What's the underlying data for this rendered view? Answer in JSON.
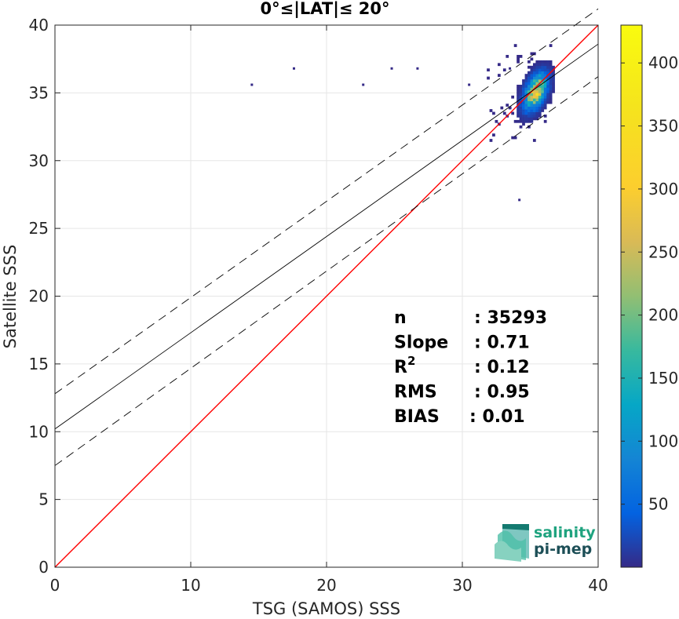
{
  "chart_data": {
    "type": "heatmap",
    "title": "0°≤|LAT|≤ 20°",
    "xlabel": "TSG (SAMOS) SSS",
    "ylabel": "Satellite SSS",
    "xlim": [
      0,
      40
    ],
    "ylim": [
      0,
      40
    ],
    "xticks": [
      0,
      10,
      20,
      30,
      40
    ],
    "yticks": [
      0,
      5,
      10,
      15,
      20,
      25,
      30,
      35,
      40
    ],
    "grid": true,
    "colorbar": {
      "min": 0,
      "max": 430,
      "ticks": [
        50,
        100,
        150,
        200,
        250,
        300,
        350,
        400
      ],
      "colormap": "parula"
    },
    "lines": [
      {
        "name": "identity",
        "style": "solid",
        "color": "#ff0000",
        "points": [
          [
            0,
            0
          ],
          [
            40,
            40
          ]
        ]
      },
      {
        "name": "regression",
        "style": "solid",
        "color": "#000000",
        "points": [
          [
            0,
            10.2
          ],
          [
            40,
            38.6
          ]
        ]
      },
      {
        "name": "upper-bound",
        "style": "dashed",
        "color": "#000000",
        "points": [
          [
            0,
            12.8
          ],
          [
            40,
            41.2
          ]
        ]
      },
      {
        "name": "lower-bound",
        "style": "dashed",
        "color": "#000000",
        "points": [
          [
            0,
            7.5
          ],
          [
            40,
            36.2
          ]
        ]
      }
    ],
    "density_center": {
      "x": 35.3,
      "y": 35.0,
      "peak_count": 430
    },
    "outliers": [
      [
        14.5,
        35.6
      ],
      [
        17.6,
        36.8
      ],
      [
        22.7,
        35.6
      ],
      [
        24.8,
        36.8
      ],
      [
        26.7,
        36.8
      ],
      [
        30.5,
        35.6
      ],
      [
        33.5,
        36.8
      ],
      [
        34.2,
        27.1
      ]
    ],
    "stats": [
      {
        "label": "n",
        "value": ": 35293"
      },
      {
        "label": "Slope",
        "value": ": 0.71"
      },
      {
        "label": "R",
        "sup": "2",
        "value": ": 0.12"
      },
      {
        "label": "RMS",
        "value": ": 0.95"
      },
      {
        "label": "BIAS",
        "value": ": 0.01"
      }
    ]
  },
  "logo": {
    "line1": "salinity",
    "line2": "pi-mep"
  }
}
